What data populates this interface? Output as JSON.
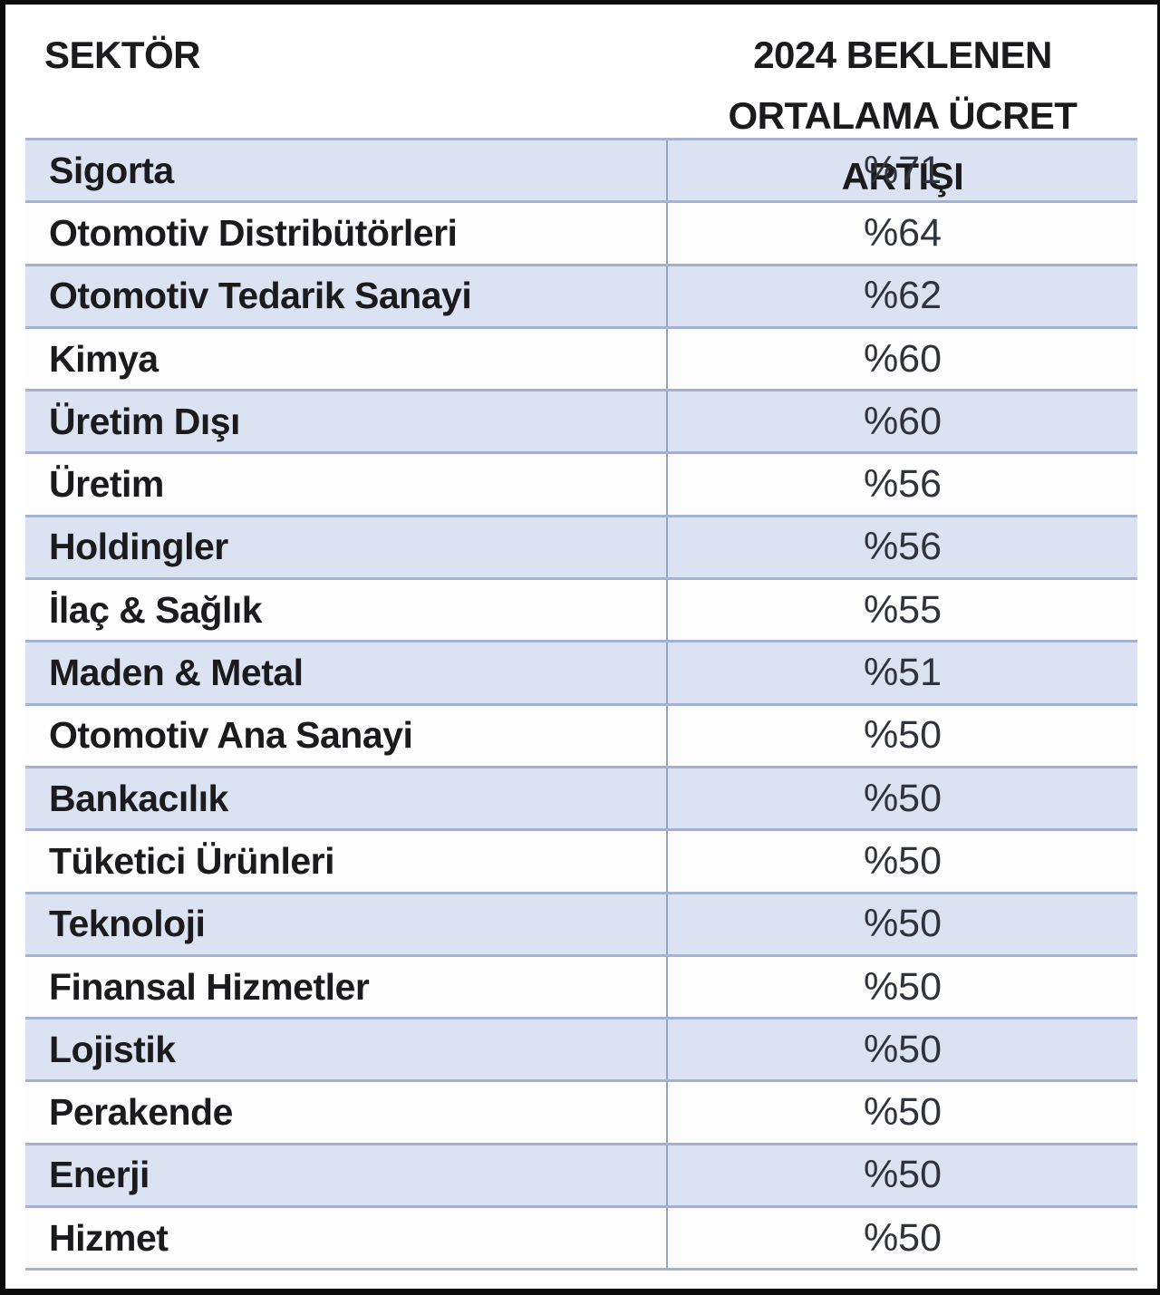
{
  "header": {
    "sector_label": "SEKTÖR",
    "value_label_line1": "2024 BEKLENEN",
    "value_label_line2": "ORTALAMA ÜCRET ARTIŞI"
  },
  "rows": [
    {
      "sector": "Sigorta",
      "value": "%71"
    },
    {
      "sector": "Otomotiv Distribütörleri",
      "value": "%64"
    },
    {
      "sector": "Otomotiv Tedarik Sanayi",
      "value": "%62"
    },
    {
      "sector": "Kimya",
      "value": "%60"
    },
    {
      "sector": "Üretim Dışı",
      "value": "%60"
    },
    {
      "sector": "Üretim",
      "value": "%56"
    },
    {
      "sector": "Holdingler",
      "value": "%56"
    },
    {
      "sector": "İlaç & Sağlık",
      "value": "%55"
    },
    {
      "sector": "Maden & Metal",
      "value": "%51"
    },
    {
      "sector": "Otomotiv Ana Sanayi",
      "value": "%50"
    },
    {
      "sector": "Bankacılık",
      "value": "%50"
    },
    {
      "sector": "Tüketici Ürünleri",
      "value": "%50"
    },
    {
      "sector": "Teknoloji",
      "value": "%50"
    },
    {
      "sector": "Finansal Hizmetler",
      "value": "%50"
    },
    {
      "sector": "Lojistik",
      "value": "%50"
    },
    {
      "sector": "Perakende",
      "value": "%50"
    },
    {
      "sector": "Enerji",
      "value": "%50"
    },
    {
      "sector": "Hizmet",
      "value": "%50"
    }
  ],
  "colors": {
    "row_highlight": "#dbe2f2",
    "row_plain": "#fdfdfe",
    "separator": "#a5b1d2",
    "divider": "#93a2c9",
    "label_text": "#1b1b1d",
    "value_text": "#30333b",
    "frame_border": "#0b0b0b"
  },
  "chart_data": {
    "type": "table",
    "title": "",
    "columns": [
      "SEKTÖR",
      "2024 BEKLENEN ORTALAMA ÜCRET ARTIŞI"
    ],
    "rows": [
      [
        "Sigorta",
        "%71"
      ],
      [
        "Otomotiv Distribütörleri",
        "%64"
      ],
      [
        "Otomotiv Tedarik Sanayi",
        "%62"
      ],
      [
        "Kimya",
        "%60"
      ],
      [
        "Üretim Dışı",
        "%60"
      ],
      [
        "Üretim",
        "%56"
      ],
      [
        "Holdingler",
        "%56"
      ],
      [
        "İlaç & Sağlık",
        "%55"
      ],
      [
        "Maden & Metal",
        "%51"
      ],
      [
        "Otomotiv Ana Sanayi",
        "%50"
      ],
      [
        "Bankacılık",
        "%50"
      ],
      [
        "Tüketici Ürünleri",
        "%50"
      ],
      [
        "Teknoloji",
        "%50"
      ],
      [
        "Finansal Hizmetler",
        "%50"
      ],
      [
        "Lojistik",
        "%50"
      ],
      [
        "Perakende",
        "%50"
      ],
      [
        "Enerji",
        "%50"
      ],
      [
        "Hizmet",
        "%50"
      ]
    ],
    "categories": [
      "Sigorta",
      "Otomotiv Distribütörleri",
      "Otomotiv Tedarik Sanayi",
      "Kimya",
      "Üretim Dışı",
      "Üretim",
      "Holdingler",
      "İlaç & Sağlık",
      "Maden & Metal",
      "Otomotiv Ana Sanayi",
      "Bankacılık",
      "Tüketici Ürünleri",
      "Teknoloji",
      "Finansal Hizmetler",
      "Lojistik",
      "Perakende",
      "Enerji",
      "Hizmet"
    ],
    "values": [
      71,
      64,
      62,
      60,
      60,
      56,
      56,
      55,
      51,
      50,
      50,
      50,
      50,
      50,
      50,
      50,
      50,
      50
    ]
  }
}
